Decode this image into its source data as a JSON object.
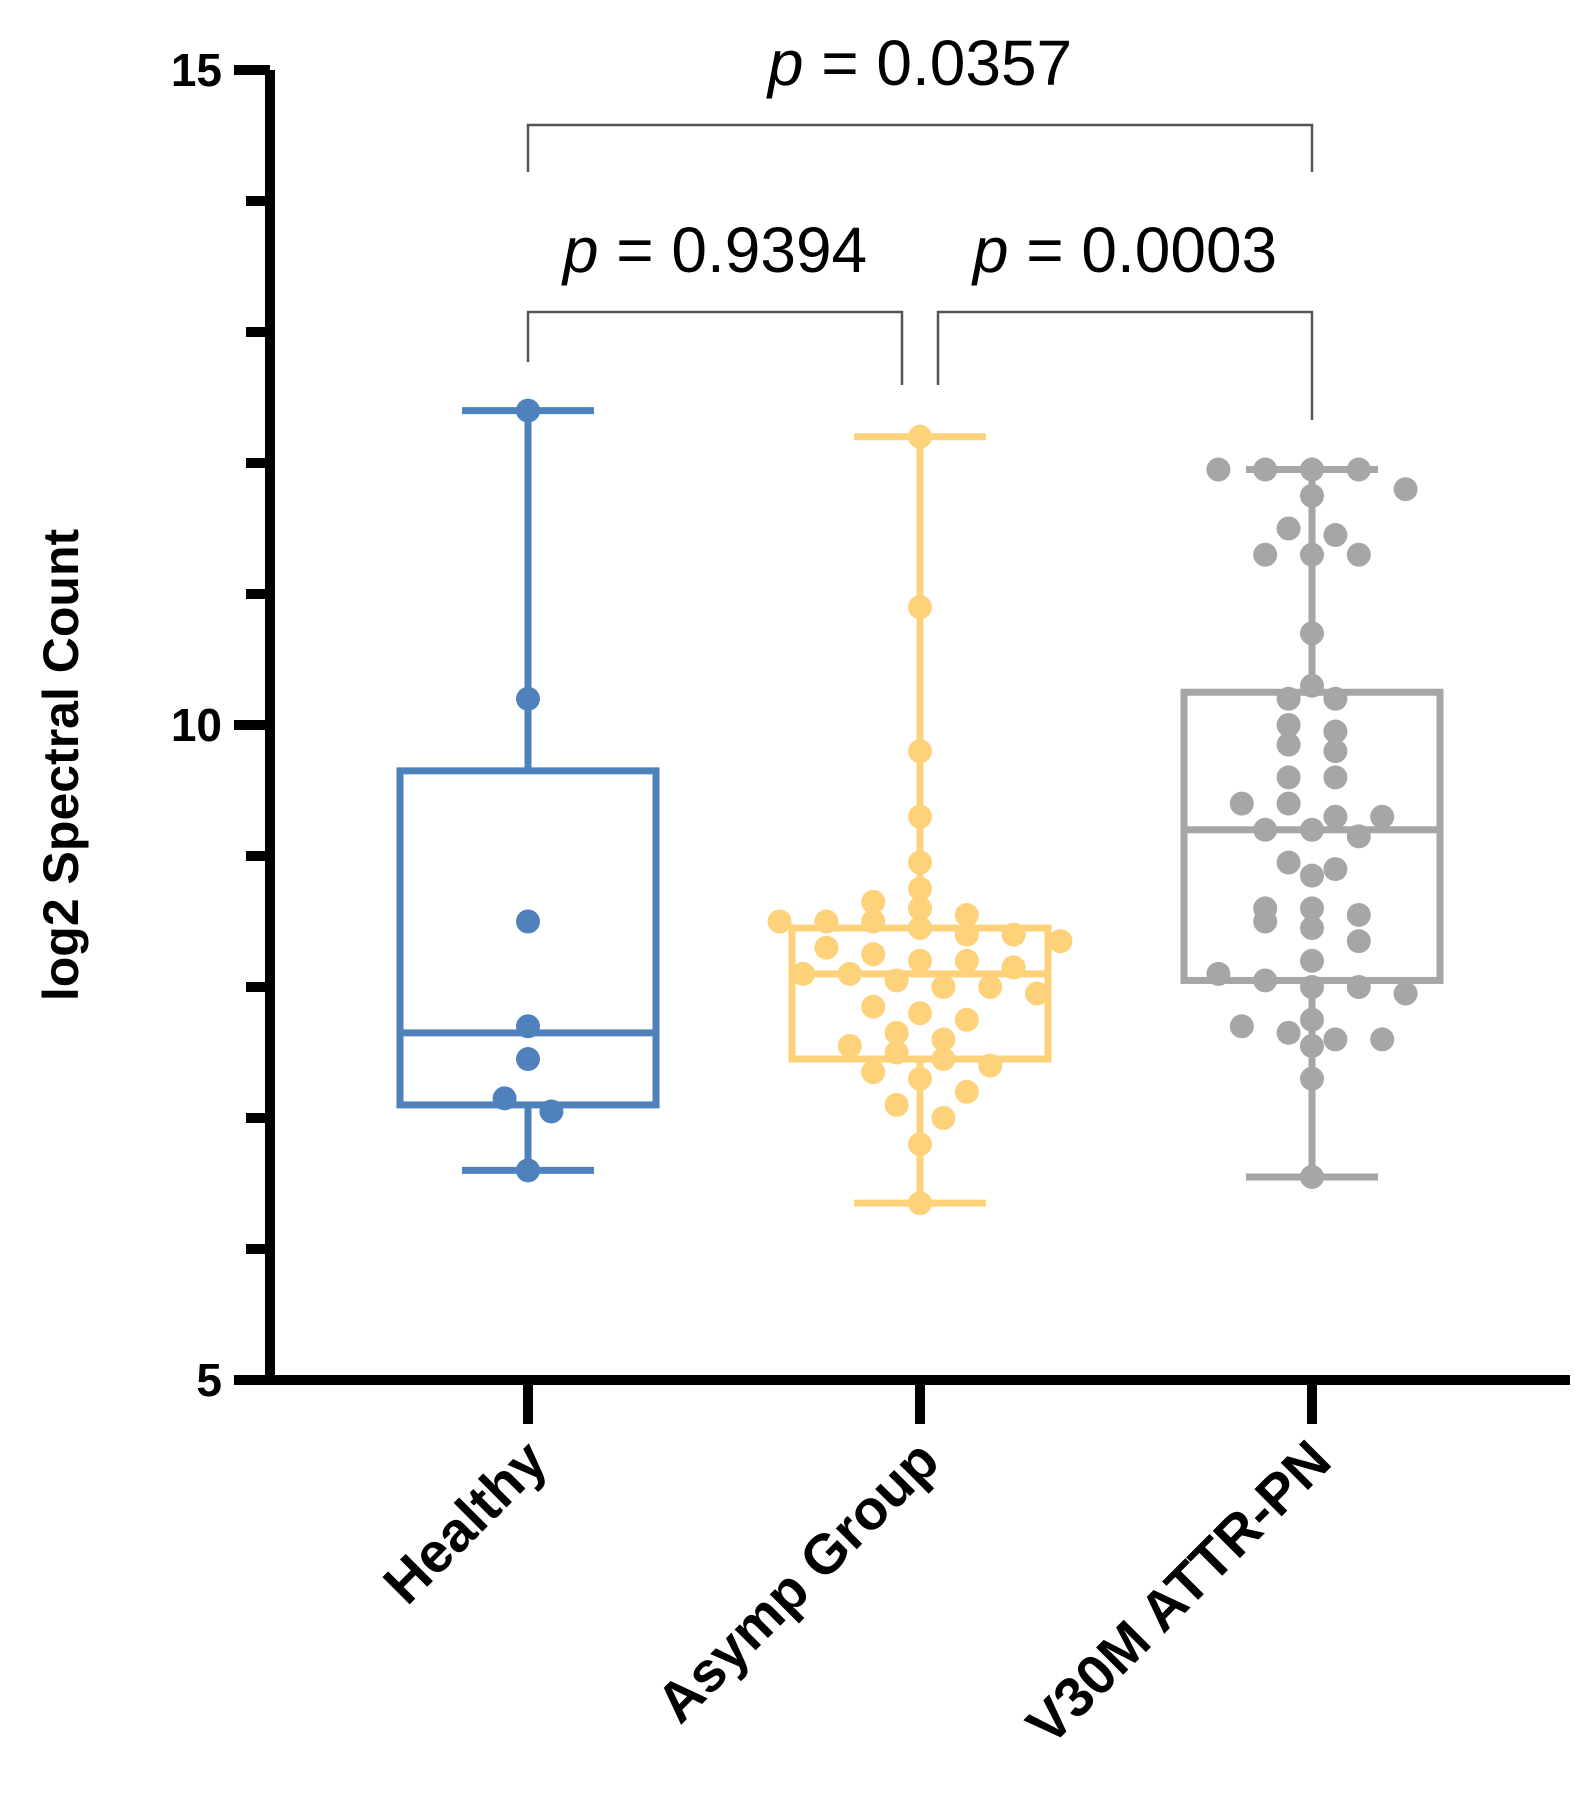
{
  "chart_data": {
    "type": "box",
    "title": "",
    "xlabel": "",
    "ylabel": "log2 Spectral Count",
    "ylim": [
      5,
      15
    ],
    "yticks_major": [
      5,
      10,
      15
    ],
    "yticks_minor": [
      6,
      7,
      8,
      9,
      11,
      12,
      13,
      14
    ],
    "categories": [
      "Healthy",
      "Asymp Group",
      "V30M ATTR-PN"
    ],
    "series": [
      {
        "name": "Healthy",
        "color": "#4f81bd",
        "whisker_low": 6.6,
        "q1": 7.1,
        "median": 7.65,
        "q3": 9.65,
        "whisker_high": 12.4,
        "points": [
          12.4,
          10.2,
          8.5,
          7.7,
          7.45,
          7.15,
          7.05,
          6.6
        ]
      },
      {
        "name": "Asymp Group",
        "color": "#fdd27a",
        "whisker_low": 6.35,
        "q1": 7.45,
        "median": 8.1,
        "q3": 8.45,
        "whisker_high": 12.2,
        "points": [
          12.2,
          10.9,
          9.8,
          9.3,
          8.95,
          8.75,
          8.65,
          8.6,
          8.55,
          8.5,
          8.5,
          8.5,
          8.45,
          8.4,
          8.4,
          8.35,
          8.3,
          8.25,
          8.2,
          8.2,
          8.15,
          8.1,
          8.1,
          8.05,
          8.0,
          8.0,
          7.95,
          7.85,
          7.8,
          7.75,
          7.65,
          7.6,
          7.55,
          7.5,
          7.45,
          7.4,
          7.35,
          7.3,
          7.2,
          7.1,
          7.0,
          6.8,
          6.35
        ]
      },
      {
        "name": "V30M ATTR-PN",
        "color": "#a6a6a6",
        "whisker_low": 6.55,
        "q1": 8.05,
        "median": 9.2,
        "q3": 10.25,
        "whisker_high": 11.95,
        "points": [
          11.95,
          11.95,
          11.95,
          11.95,
          11.8,
          11.75,
          11.5,
          11.45,
          11.3,
          11.3,
          11.3,
          10.7,
          10.3,
          10.2,
          10.2,
          10.0,
          9.95,
          9.85,
          9.8,
          9.6,
          9.6,
          9.4,
          9.4,
          9.3,
          9.3,
          9.2,
          9.2,
          9.15,
          8.95,
          8.9,
          8.85,
          8.6,
          8.6,
          8.55,
          8.5,
          8.45,
          8.35,
          8.2,
          8.1,
          8.05,
          8.0,
          8.0,
          7.95,
          7.75,
          7.7,
          7.65,
          7.6,
          7.6,
          7.55,
          7.3,
          6.55
        ]
      }
    ],
    "comparisons": [
      {
        "groups": [
          "Healthy",
          "V30M ATTR-PN"
        ],
        "label": "p = 0.0357"
      },
      {
        "groups": [
          "Healthy",
          "Asymp Group"
        ],
        "label": "p = 0.9394"
      },
      {
        "groups": [
          "Asymp Group",
          "V30M ATTR-PN"
        ],
        "label": "p = 0.0003"
      }
    ]
  }
}
